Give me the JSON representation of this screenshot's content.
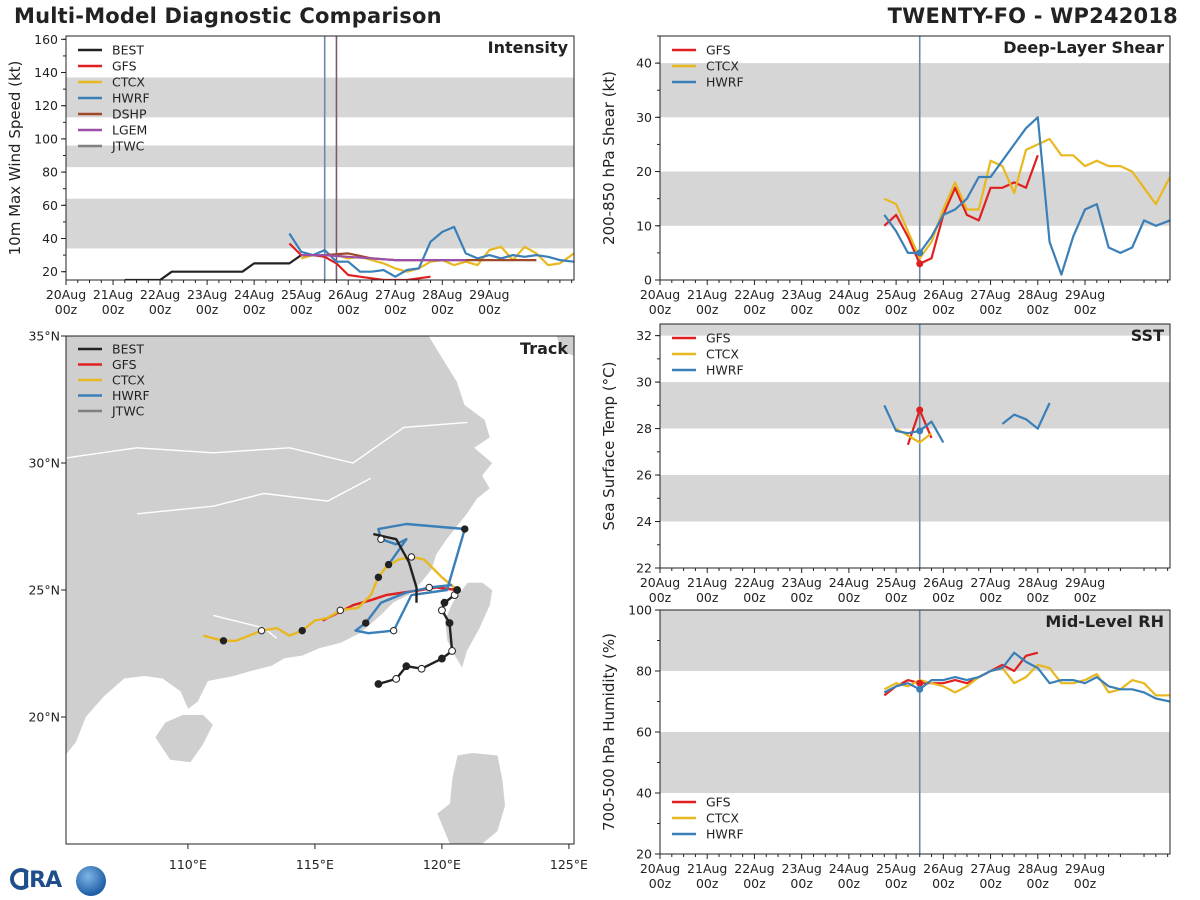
{
  "header": {
    "title": "Multi-Model Diagnostic Comparison",
    "storm": "TWENTY-FO - WP242018"
  },
  "colors": {
    "BEST": "#222222",
    "GFS": "#e02020",
    "CTCX": "#e8b820",
    "HWRF": "#3a7fb8",
    "DSHP": "#a0482a",
    "LGEM": "#9a50a8",
    "JTWC": "#808080",
    "band": "#d6d6d6"
  },
  "time_ticks": [
    "20Aug",
    "21Aug",
    "22Aug",
    "23Aug",
    "24Aug",
    "25Aug",
    "26Aug",
    "27Aug",
    "28Aug",
    "29Aug"
  ],
  "time_ticks_sub": "00z",
  "chart_data": [
    {
      "id": "intensity",
      "type": "line",
      "title": "Intensity",
      "ylabel": "10m Max Wind Speed (kt)",
      "xlim": [
        0,
        10.8
      ],
      "ylim": [
        15,
        162
      ],
      "yticks": [
        20,
        40,
        60,
        80,
        100,
        120,
        140,
        160
      ],
      "bands": [
        [
          34,
          64
        ],
        [
          83,
          96
        ],
        [
          113,
          137
        ]
      ],
      "vlines": [
        {
          "x": 5.5,
          "color": "#6a8aa8"
        },
        {
          "x": 5.75,
          "color": "#7a5a6a"
        }
      ],
      "legend": [
        "BEST",
        "GFS",
        "CTCX",
        "HWRF",
        "DSHP",
        "LGEM",
        "JTWC"
      ],
      "series": [
        {
          "name": "BEST",
          "x": [
            1.25,
            1.75,
            2.0,
            2.25,
            2.5,
            2.75,
            3.0,
            3.25,
            3.5,
            3.75,
            4.0,
            4.25,
            4.5,
            4.75,
            5.0,
            5.25,
            5.5
          ],
          "y": [
            15,
            15,
            15,
            20,
            20,
            20,
            20,
            20,
            20,
            20,
            25,
            25,
            25,
            25,
            30,
            30,
            30
          ]
        },
        {
          "name": "GFS",
          "x": [
            4.75,
            5.0,
            5.25,
            5.5,
            5.75,
            6.0,
            6.25,
            6.5,
            6.75,
            7.0,
            7.25,
            7.5,
            7.75
          ],
          "y": [
            37,
            30,
            30,
            29,
            25,
            18,
            17,
            16,
            15,
            15,
            15,
            16,
            17
          ]
        },
        {
          "name": "CTCX",
          "x": [
            5.0,
            5.25,
            5.5,
            5.75,
            6.0,
            6.25,
            6.5,
            6.75,
            7.0,
            7.25,
            7.5,
            7.75,
            8.0,
            8.25,
            8.5,
            8.75,
            9.0,
            9.25,
            9.5,
            9.75,
            10.0,
            10.25,
            10.5,
            10.8
          ],
          "y": [
            28,
            30,
            30,
            30,
            28,
            29,
            27,
            25,
            22,
            20,
            22,
            26,
            27,
            24,
            26,
            24,
            33,
            35,
            27,
            35,
            31,
            24,
            25,
            31
          ]
        },
        {
          "name": "HWRF",
          "x": [
            4.75,
            5.0,
            5.25,
            5.5,
            5.75,
            6.0,
            6.25,
            6.5,
            6.75,
            7.0,
            7.25,
            7.5,
            7.75,
            8.0,
            8.25,
            8.5,
            8.75,
            9.0,
            9.25,
            9.5,
            9.75,
            10.0,
            10.25,
            10.5,
            10.8
          ],
          "y": [
            43,
            32,
            30,
            33,
            26,
            26,
            20,
            20,
            21,
            17,
            21,
            22,
            38,
            44,
            47,
            31,
            28,
            30,
            28,
            30,
            29,
            30,
            29,
            27,
            26
          ]
        },
        {
          "name": "DSHP",
          "x": [
            5.0,
            5.5,
            6.0,
            6.5,
            7.0,
            7.5,
            8.0,
            8.5,
            9.0,
            9.5,
            9.75,
            10.0
          ],
          "y": [
            30,
            30,
            31,
            28,
            27,
            27,
            27,
            27,
            27,
            27,
            27,
            27
          ]
        },
        {
          "name": "LGEM",
          "x": [
            5.0,
            5.5,
            6.0,
            6.5,
            7.0,
            7.5,
            8.0,
            8.5
          ],
          "y": [
            30,
            30,
            29,
            28,
            27,
            27,
            27,
            27
          ]
        }
      ]
    },
    {
      "id": "shear",
      "type": "line",
      "title": "Deep-Layer Shear",
      "ylabel": "200-850 hPa Shear (kt)",
      "xlim": [
        0,
        10.8
      ],
      "ylim": [
        0,
        45
      ],
      "yticks": [
        0,
        10,
        20,
        30,
        40
      ],
      "bands": [
        [
          10,
          20
        ],
        [
          30,
          40
        ]
      ],
      "vlines": [
        {
          "x": 5.5,
          "color": "#6a8aa8"
        }
      ],
      "legend": [
        "GFS",
        "CTCX",
        "HWRF"
      ],
      "series": [
        {
          "name": "GFS",
          "x": [
            4.75,
            5.0,
            5.25,
            5.5,
            5.75,
            6.0,
            6.25,
            6.5,
            6.75,
            7.0,
            7.25,
            7.5,
            7.75,
            8.0
          ],
          "y": [
            10,
            12,
            8,
            3,
            4,
            12,
            17,
            12,
            11,
            17,
            17,
            18,
            17,
            23
          ]
        },
        {
          "name": "CTCX",
          "x": [
            4.75,
            5.0,
            5.25,
            5.5,
            5.75,
            6.0,
            6.25,
            6.5,
            6.75,
            7.0,
            7.25,
            7.5,
            7.75,
            8.0,
            8.25,
            8.5,
            8.75,
            9.0,
            9.25,
            9.5,
            9.75,
            10.0,
            10.25,
            10.5,
            10.8
          ],
          "y": [
            15,
            14,
            9,
            4,
            7,
            13,
            18,
            13,
            13,
            22,
            21,
            16,
            24,
            25,
            26,
            23,
            23,
            21,
            22,
            21,
            21,
            20,
            17,
            14,
            19
          ]
        },
        {
          "name": "HWRF",
          "x": [
            4.75,
            5.0,
            5.25,
            5.5,
            5.75,
            6.0,
            6.25,
            6.5,
            6.75,
            7.0,
            7.25,
            7.5,
            7.75,
            8.0,
            8.25,
            8.5,
            8.75,
            9.0,
            9.25,
            9.5,
            9.75,
            10.0,
            10.25,
            10.5,
            10.8
          ],
          "y": [
            12,
            9,
            5,
            5,
            8,
            12,
            13,
            15,
            19,
            19,
            22,
            25,
            28,
            30,
            7,
            1,
            8,
            13,
            14,
            6,
            5,
            6,
            11,
            10,
            11
          ]
        }
      ]
    },
    {
      "id": "sst",
      "type": "line",
      "title": "SST",
      "ylabel": "Sea Surface Temp (°C)",
      "xlim": [
        0,
        10.8
      ],
      "ylim": [
        22,
        32.5
      ],
      "yticks": [
        22,
        24,
        26,
        28,
        30,
        32
      ],
      "bands": [
        [
          24,
          26
        ],
        [
          28,
          30
        ],
        [
          32,
          32.5
        ]
      ],
      "vlines": [
        {
          "x": 5.5,
          "color": "#6a8aa8"
        }
      ],
      "legend": [
        "GFS",
        "CTCX",
        "HWRF"
      ],
      "series": [
        {
          "name": "GFS",
          "x": [
            5.25,
            5.5,
            5.75
          ],
          "y": [
            27.3,
            28.8,
            27.6
          ]
        },
        {
          "name": "CTCX",
          "x": [
            5.0,
            5.25,
            5.5,
            5.75
          ],
          "y": [
            28.0,
            27.7,
            27.4,
            27.8
          ]
        },
        {
          "name": "HWRF",
          "x": [
            4.75,
            5.0,
            5.25,
            5.5,
            5.75,
            6.0
          ],
          "y": [
            29.0,
            27.9,
            27.8,
            27.9,
            28.3,
            27.4
          ]
        },
        {
          "name": "HWRF",
          "x": [
            7.25,
            7.5,
            7.75,
            8.0,
            8.25
          ],
          "y": [
            28.2,
            28.6,
            28.4,
            28.0,
            29.1
          ]
        }
      ]
    },
    {
      "id": "rh",
      "type": "line",
      "title": "Mid-Level RH",
      "ylabel": "700-500 hPa Humidity (%)",
      "xlim": [
        0,
        10.8
      ],
      "ylim": [
        20,
        100
      ],
      "yticks": [
        20,
        40,
        60,
        80,
        100
      ],
      "bands": [
        [
          40,
          60
        ],
        [
          80,
          100
        ]
      ],
      "vlines": [
        {
          "x": 5.5,
          "color": "#6a8aa8"
        }
      ],
      "legend": [
        "GFS",
        "CTCX",
        "HWRF"
      ],
      "series": [
        {
          "name": "GFS",
          "x": [
            4.75,
            5.0,
            5.25,
            5.5,
            5.75,
            6.0,
            6.25,
            6.5,
            6.75,
            7.0,
            7.25,
            7.5,
            7.75,
            8.0
          ],
          "y": [
            72,
            75,
            77,
            76,
            76,
            76,
            77,
            76,
            78,
            80,
            82,
            80,
            85,
            86
          ]
        },
        {
          "name": "CTCX",
          "x": [
            4.75,
            5.0,
            5.25,
            5.5,
            5.75,
            6.0,
            6.25,
            6.5,
            6.75,
            7.0,
            7.25,
            7.5,
            7.75,
            8.0,
            8.25,
            8.5,
            8.75,
            9.0,
            9.25,
            9.5,
            9.75,
            10.0,
            10.25,
            10.5,
            10.8
          ],
          "y": [
            74,
            76,
            75,
            77,
            76,
            75,
            73,
            75,
            78,
            80,
            81,
            76,
            78,
            82,
            81,
            76,
            76,
            77,
            79,
            73,
            74,
            77,
            76,
            72,
            72
          ]
        },
        {
          "name": "HWRF",
          "x": [
            4.75,
            5.0,
            5.25,
            5.5,
            5.75,
            6.0,
            6.25,
            6.5,
            6.75,
            7.0,
            7.25,
            7.5,
            7.75,
            8.0,
            8.25,
            8.5,
            8.75,
            9.0,
            9.25,
            9.5,
            9.75,
            10.0,
            10.25,
            10.5,
            10.8
          ],
          "y": [
            73,
            75,
            76,
            74,
            77,
            77,
            78,
            77,
            78,
            80,
            81,
            86,
            83,
            81,
            76,
            77,
            77,
            76,
            78,
            75,
            74,
            74,
            73,
            71,
            70
          ]
        }
      ]
    },
    {
      "id": "track",
      "type": "track",
      "title": "Track",
      "xlim": [
        105.2,
        125.2
      ],
      "ylim": [
        15,
        35
      ],
      "xticks": [
        110,
        115,
        120,
        125
      ],
      "xtick_labels": [
        "110°E",
        "115°E",
        "120°E",
        "125°E"
      ],
      "yticks": [
        20,
        25,
        30,
        35
      ],
      "ytick_labels": [
        "20°N",
        "25°N",
        "30°N",
        "35°N"
      ],
      "legend": [
        "BEST",
        "GFS",
        "CTCX",
        "HWRF",
        "JTWC"
      ],
      "series": [
        {
          "name": "BEST",
          "lon": [
            117.5,
            118.2,
            118.6,
            119.2,
            120.0,
            120.4,
            120.3,
            120.0,
            120.1,
            120.5,
            120.6
          ],
          "lat": [
            21.3,
            21.5,
            22.0,
            21.9,
            22.3,
            22.6,
            23.7,
            24.2,
            24.5,
            24.8,
            25.0
          ]
        },
        {
          "name": "GFS",
          "lon": [
            120.6,
            119.8,
            119.2,
            118.5,
            117.8,
            117.2,
            116.5,
            115.9,
            115.3
          ],
          "lat": [
            25.0,
            25.1,
            25.0,
            24.9,
            24.8,
            24.6,
            24.4,
            24.1,
            23.8
          ]
        },
        {
          "name": "CTCX",
          "lon": [
            120.6,
            120.0,
            119.3,
            118.8,
            118.3,
            117.8,
            117.5,
            117.2,
            116.7,
            116.0,
            115.5,
            115.0,
            114.5,
            114.0,
            113.5,
            112.9,
            112.4,
            111.9,
            111.4,
            110.6
          ],
          "lat": [
            25.0,
            25.5,
            26.2,
            26.3,
            26.2,
            25.9,
            25.5,
            24.8,
            24.3,
            24.2,
            23.9,
            23.8,
            23.4,
            23.2,
            23.5,
            23.4,
            23.2,
            23.0,
            23.0,
            23.2
          ]
        },
        {
          "name": "HWRF",
          "lon": [
            120.4,
            119.5,
            118.6,
            117.6,
            117.0,
            116.6,
            117.1,
            118.1,
            118.8,
            120.2,
            120.9,
            118.6,
            117.5,
            117.6,
            118.2,
            118.6,
            117.9
          ],
          "lat": [
            25.2,
            25.1,
            24.9,
            24.5,
            23.7,
            23.4,
            23.3,
            23.4,
            24.8,
            25.0,
            27.4,
            27.6,
            27.4,
            27.0,
            26.8,
            27.0,
            26.0
          ]
        },
        {
          "name": "BEST",
          "lon": [
            119.0,
            119.0,
            118.7,
            118.2,
            117.3
          ],
          "lat": [
            24.5,
            25.1,
            26.1,
            27.0,
            27.2
          ]
        }
      ]
    }
  ]
}
